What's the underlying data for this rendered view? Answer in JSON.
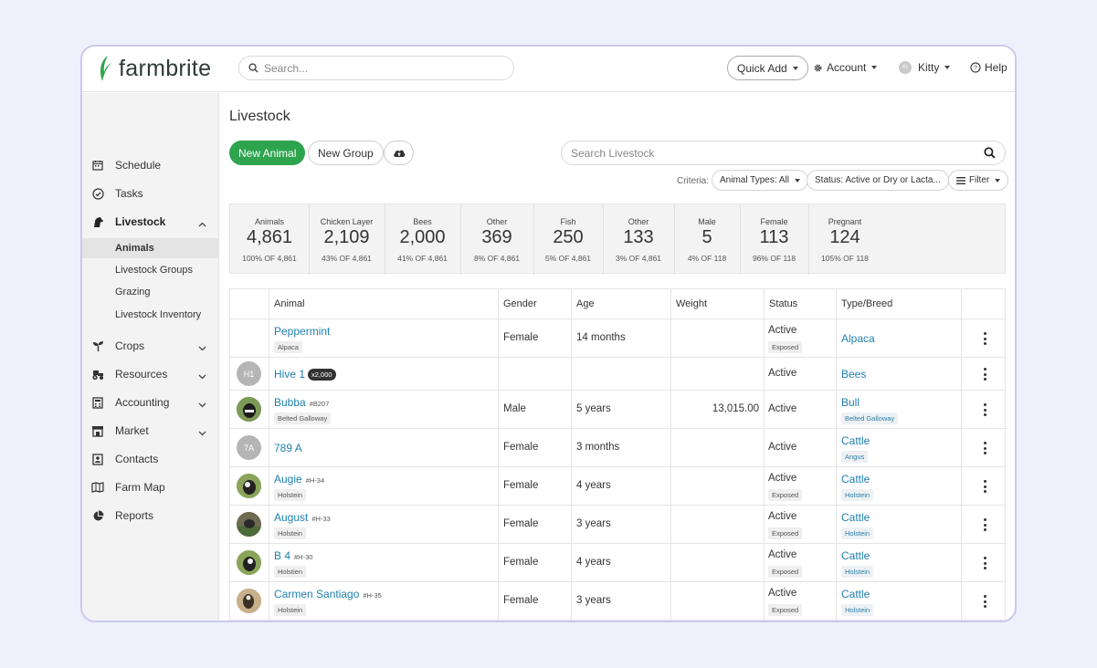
{
  "brand": {
    "name": "farmbrite",
    "accent": "#2ea44f",
    "link_color": "#1f7fae"
  },
  "header": {
    "search_placeholder": "Search...",
    "quick_add": "Quick Add",
    "account": "Account",
    "user_initials": "KI",
    "user": "Kitty",
    "help": "Help"
  },
  "sidebar": {
    "items": [
      {
        "label": "Schedule",
        "icon": "calendar-icon"
      },
      {
        "label": "Tasks",
        "icon": "check-circle-icon"
      },
      {
        "label": "Livestock",
        "icon": "horse-icon"
      },
      {
        "label": "Crops",
        "icon": "sprout-icon"
      },
      {
        "label": "Resources",
        "icon": "tractor-icon"
      },
      {
        "label": "Accounting",
        "icon": "calculator-icon"
      },
      {
        "label": "Market",
        "icon": "store-icon"
      },
      {
        "label": "Contacts",
        "icon": "contact-icon"
      },
      {
        "label": "Farm Map",
        "icon": "map-icon"
      },
      {
        "label": "Reports",
        "icon": "pie-chart-icon"
      }
    ],
    "livestock_sub": [
      "Animals",
      "Livestock Groups",
      "Grazing",
      "Livestock Inventory"
    ]
  },
  "main": {
    "title": "Livestock",
    "new_animal": "New Animal",
    "new_group": "New Group",
    "search_placeholder": "Search Livestock",
    "criteria_label": "Criteria:",
    "criteria_animal_types": "Animal Types: All",
    "criteria_status": "Status: Active or Dry or Lacta...",
    "filter": "Filter"
  },
  "stats": [
    {
      "label": "Animals",
      "value": "4,861",
      "sub": "100% OF 4,861"
    },
    {
      "label": "Chicken Layer",
      "value": "2,109",
      "sub": "43% OF 4,861"
    },
    {
      "label": "Bees",
      "value": "2,000",
      "sub": "41% OF 4,861"
    },
    {
      "label": "Other",
      "value": "369",
      "sub": "8% OF 4,861"
    },
    {
      "label": "Fish",
      "value": "250",
      "sub": "5% OF 4,861"
    },
    {
      "label": "Other",
      "value": "133",
      "sub": "3% OF 4,861"
    },
    {
      "label": "Male",
      "value": "5",
      "sub": "4% OF 118"
    },
    {
      "label": "Female",
      "value": "113",
      "sub": "96% OF 118"
    },
    {
      "label": "Pregnant",
      "value": "124",
      "sub": "105% OF 118"
    }
  ],
  "table": {
    "columns": [
      "Animal",
      "Gender",
      "Age",
      "Weight",
      "Status",
      "Type/Breed"
    ],
    "rows": [
      {
        "name": "Peppermint",
        "id": "",
        "count": "",
        "tag": "Alpaca",
        "gender": "Female",
        "age": "14 months",
        "weight": "",
        "status": "Active",
        "status_tag": "Exposed",
        "type": "Alpaca",
        "breed": "",
        "avatar": ""
      },
      {
        "name": "Hive 1",
        "id": "",
        "count": "x2,000",
        "tag": "",
        "gender": "",
        "age": "",
        "weight": "",
        "status": "Active",
        "status_tag": "",
        "type": "Bees",
        "breed": "",
        "avatar": "H1"
      },
      {
        "name": "Bubba",
        "id": "#B207",
        "count": "",
        "tag": "Belted Galloway",
        "gender": "Male",
        "age": "5 years",
        "weight": "13,015.00",
        "status": "Active",
        "status_tag": "",
        "type": "Bull",
        "breed": "Belted Galloway",
        "avatar": "photo"
      },
      {
        "name": "789 A",
        "id": "",
        "count": "",
        "tag": "",
        "gender": "Female",
        "age": "3 months",
        "weight": "",
        "status": "Active",
        "status_tag": "",
        "type": "Cattle",
        "breed": "Angus",
        "avatar": "7A"
      },
      {
        "name": "Augie",
        "id": "#H-34",
        "count": "",
        "tag": "Holstein",
        "gender": "Female",
        "age": "4 years",
        "weight": "",
        "status": "Active",
        "status_tag": "Exposed",
        "type": "Cattle",
        "breed": "Holstein",
        "avatar": "photo"
      },
      {
        "name": "August",
        "id": "#H-33",
        "count": "",
        "tag": "Holstein",
        "gender": "Female",
        "age": "3 years",
        "weight": "",
        "status": "Active",
        "status_tag": "Exposed",
        "type": "Cattle",
        "breed": "Holstein",
        "avatar": "photo"
      },
      {
        "name": "B 4",
        "id": "#H-30",
        "count": "",
        "tag": "Holstien",
        "gender": "Female",
        "age": "4 years",
        "weight": "",
        "status": "Active",
        "status_tag": "Exposed",
        "type": "Cattle",
        "breed": "Holstein",
        "avatar": "photo"
      },
      {
        "name": "Carmen Santiago",
        "id": "#H-35",
        "count": "",
        "tag": "Holstein",
        "gender": "Female",
        "age": "3 years",
        "weight": "",
        "status": "Active",
        "status_tag": "Exposed",
        "type": "Cattle",
        "breed": "Holstein",
        "avatar": "photo"
      }
    ]
  }
}
